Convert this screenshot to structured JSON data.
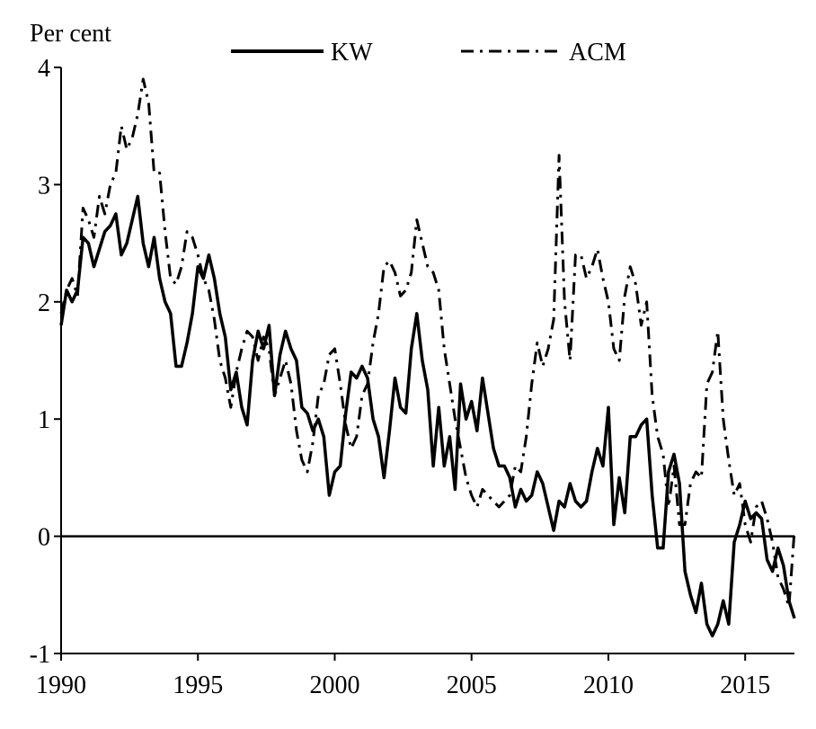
{
  "chart_data": {
    "type": "line",
    "title": "",
    "xlabel": "",
    "ylabel": "Per cent",
    "xlim": [
      1990,
      2016.8
    ],
    "ylim": [
      -1,
      4
    ],
    "x_ticks": [
      1990,
      1995,
      2000,
      2005,
      2010,
      2015
    ],
    "x_tick_labels": [
      "1990",
      "1995",
      "2000",
      "2005",
      "2010",
      "2015"
    ],
    "y_ticks": [
      -1,
      0,
      1,
      2,
      3,
      4
    ],
    "y_tick_labels": [
      "-1",
      "0",
      "1",
      "2",
      "3",
      "4"
    ],
    "grid": false,
    "legend_position": "top",
    "zero_line": true,
    "series": [
      {
        "name": "KW",
        "style": "solid",
        "color": "#000000",
        "points": [
          [
            1990.0,
            1.8
          ],
          [
            1990.2,
            2.1
          ],
          [
            1990.4,
            2.0
          ],
          [
            1990.6,
            2.1
          ],
          [
            1990.8,
            2.55
          ],
          [
            1991.0,
            2.5
          ],
          [
            1991.2,
            2.3
          ],
          [
            1991.4,
            2.45
          ],
          [
            1991.6,
            2.6
          ],
          [
            1991.8,
            2.65
          ],
          [
            1992.0,
            2.75
          ],
          [
            1992.2,
            2.4
          ],
          [
            1992.4,
            2.5
          ],
          [
            1992.6,
            2.7
          ],
          [
            1992.8,
            2.9
          ],
          [
            1993.0,
            2.5
          ],
          [
            1993.2,
            2.3
          ],
          [
            1993.4,
            2.55
          ],
          [
            1993.6,
            2.2
          ],
          [
            1993.8,
            2.0
          ],
          [
            1994.0,
            1.9
          ],
          [
            1994.2,
            1.45
          ],
          [
            1994.4,
            1.45
          ],
          [
            1994.6,
            1.65
          ],
          [
            1994.8,
            1.9
          ],
          [
            1995.0,
            2.3
          ],
          [
            1995.2,
            2.2
          ],
          [
            1995.4,
            2.4
          ],
          [
            1995.6,
            2.2
          ],
          [
            1995.8,
            1.9
          ],
          [
            1996.0,
            1.7
          ],
          [
            1996.2,
            1.25
          ],
          [
            1996.4,
            1.4
          ],
          [
            1996.6,
            1.1
          ],
          [
            1996.8,
            0.95
          ],
          [
            1997.0,
            1.5
          ],
          [
            1997.2,
            1.75
          ],
          [
            1997.4,
            1.6
          ],
          [
            1997.6,
            1.8
          ],
          [
            1997.8,
            1.2
          ],
          [
            1998.0,
            1.55
          ],
          [
            1998.2,
            1.75
          ],
          [
            1998.4,
            1.6
          ],
          [
            1998.6,
            1.5
          ],
          [
            1998.8,
            1.1
          ],
          [
            1999.0,
            1.05
          ],
          [
            1999.2,
            0.9
          ],
          [
            1999.4,
            1.0
          ],
          [
            1999.6,
            0.85
          ],
          [
            1999.8,
            0.35
          ],
          [
            2000.0,
            0.55
          ],
          [
            2000.2,
            0.6
          ],
          [
            2000.4,
            1.05
          ],
          [
            2000.6,
            1.4
          ],
          [
            2000.8,
            1.35
          ],
          [
            2001.0,
            1.45
          ],
          [
            2001.2,
            1.35
          ],
          [
            2001.4,
            1.0
          ],
          [
            2001.6,
            0.85
          ],
          [
            2001.8,
            0.5
          ],
          [
            2002.0,
            0.9
          ],
          [
            2002.2,
            1.35
          ],
          [
            2002.4,
            1.1
          ],
          [
            2002.6,
            1.05
          ],
          [
            2002.8,
            1.6
          ],
          [
            2003.0,
            1.9
          ],
          [
            2003.2,
            1.5
          ],
          [
            2003.4,
            1.25
          ],
          [
            2003.6,
            0.6
          ],
          [
            2003.8,
            1.1
          ],
          [
            2004.0,
            0.6
          ],
          [
            2004.2,
            0.85
          ],
          [
            2004.4,
            0.4
          ],
          [
            2004.6,
            1.3
          ],
          [
            2004.8,
            1.0
          ],
          [
            2005.0,
            1.15
          ],
          [
            2005.2,
            0.9
          ],
          [
            2005.4,
            1.35
          ],
          [
            2005.6,
            1.05
          ],
          [
            2005.8,
            0.75
          ],
          [
            2006.0,
            0.6
          ],
          [
            2006.2,
            0.6
          ],
          [
            2006.4,
            0.5
          ],
          [
            2006.6,
            0.25
          ],
          [
            2006.8,
            0.4
          ],
          [
            2007.0,
            0.3
          ],
          [
            2007.2,
            0.35
          ],
          [
            2007.4,
            0.55
          ],
          [
            2007.6,
            0.45
          ],
          [
            2007.8,
            0.25
          ],
          [
            2008.0,
            0.05
          ],
          [
            2008.2,
            0.3
          ],
          [
            2008.4,
            0.25
          ],
          [
            2008.6,
            0.45
          ],
          [
            2008.8,
            0.3
          ],
          [
            2009.0,
            0.25
          ],
          [
            2009.2,
            0.3
          ],
          [
            2009.4,
            0.55
          ],
          [
            2009.6,
            0.75
          ],
          [
            2009.8,
            0.6
          ],
          [
            2010.0,
            1.1
          ],
          [
            2010.2,
            0.1
          ],
          [
            2010.4,
            0.5
          ],
          [
            2010.6,
            0.2
          ],
          [
            2010.8,
            0.85
          ],
          [
            2011.0,
            0.85
          ],
          [
            2011.2,
            0.95
          ],
          [
            2011.4,
            1.0
          ],
          [
            2011.6,
            0.35
          ],
          [
            2011.8,
            -0.1
          ],
          [
            2012.0,
            -0.1
          ],
          [
            2012.2,
            0.55
          ],
          [
            2012.4,
            0.7
          ],
          [
            2012.6,
            0.45
          ],
          [
            2012.8,
            -0.3
          ],
          [
            2013.0,
            -0.5
          ],
          [
            2013.2,
            -0.65
          ],
          [
            2013.4,
            -0.4
          ],
          [
            2013.6,
            -0.75
          ],
          [
            2013.8,
            -0.85
          ],
          [
            2014.0,
            -0.75
          ],
          [
            2014.2,
            -0.55
          ],
          [
            2014.4,
            -0.75
          ],
          [
            2014.6,
            -0.05
          ],
          [
            2014.8,
            0.1
          ],
          [
            2015.0,
            0.3
          ],
          [
            2015.2,
            0.15
          ],
          [
            2015.4,
            0.2
          ],
          [
            2015.6,
            0.15
          ],
          [
            2015.8,
            -0.2
          ],
          [
            2016.0,
            -0.3
          ],
          [
            2016.2,
            -0.1
          ],
          [
            2016.4,
            -0.25
          ],
          [
            2016.6,
            -0.55
          ],
          [
            2016.8,
            -0.7
          ]
        ]
      },
      {
        "name": "ACM",
        "style": "dash-dot",
        "color": "#000000",
        "points": [
          [
            1990.0,
            1.9
          ],
          [
            1990.2,
            2.1
          ],
          [
            1990.4,
            2.2
          ],
          [
            1990.6,
            2.05
          ],
          [
            1990.8,
            2.8
          ],
          [
            1991.0,
            2.7
          ],
          [
            1991.2,
            2.55
          ],
          [
            1991.4,
            2.9
          ],
          [
            1991.6,
            2.75
          ],
          [
            1991.8,
            3.0
          ],
          [
            1992.0,
            3.1
          ],
          [
            1992.2,
            3.5
          ],
          [
            1992.4,
            3.3
          ],
          [
            1992.6,
            3.4
          ],
          [
            1992.8,
            3.6
          ],
          [
            1993.0,
            3.9
          ],
          [
            1993.2,
            3.7
          ],
          [
            1993.4,
            3.1
          ],
          [
            1993.6,
            3.1
          ],
          [
            1993.8,
            2.6
          ],
          [
            1994.0,
            2.2
          ],
          [
            1994.2,
            2.15
          ],
          [
            1994.4,
            2.3
          ],
          [
            1994.6,
            2.6
          ],
          [
            1994.8,
            2.55
          ],
          [
            1995.0,
            2.4
          ],
          [
            1995.2,
            2.2
          ],
          [
            1995.4,
            2.1
          ],
          [
            1995.6,
            1.85
          ],
          [
            1995.8,
            1.5
          ],
          [
            1996.0,
            1.35
          ],
          [
            1996.2,
            1.1
          ],
          [
            1996.4,
            1.4
          ],
          [
            1996.6,
            1.6
          ],
          [
            1996.8,
            1.75
          ],
          [
            1997.0,
            1.7
          ],
          [
            1997.2,
            1.5
          ],
          [
            1997.4,
            1.7
          ],
          [
            1997.6,
            1.6
          ],
          [
            1997.8,
            1.2
          ],
          [
            1998.0,
            1.35
          ],
          [
            1998.2,
            1.5
          ],
          [
            1998.4,
            1.3
          ],
          [
            1998.6,
            0.9
          ],
          [
            1998.8,
            0.65
          ],
          [
            1999.0,
            0.55
          ],
          [
            1999.2,
            0.8
          ],
          [
            1999.4,
            1.2
          ],
          [
            1999.6,
            1.3
          ],
          [
            1999.8,
            1.55
          ],
          [
            2000.0,
            1.6
          ],
          [
            2000.2,
            1.3
          ],
          [
            2000.4,
            0.95
          ],
          [
            2000.6,
            0.75
          ],
          [
            2000.8,
            0.85
          ],
          [
            2001.0,
            1.2
          ],
          [
            2001.2,
            1.3
          ],
          [
            2001.4,
            1.65
          ],
          [
            2001.6,
            1.9
          ],
          [
            2001.8,
            2.3
          ],
          [
            2002.0,
            2.35
          ],
          [
            2002.2,
            2.25
          ],
          [
            2002.4,
            2.05
          ],
          [
            2002.6,
            2.1
          ],
          [
            2002.8,
            2.25
          ],
          [
            2003.0,
            2.7
          ],
          [
            2003.2,
            2.5
          ],
          [
            2003.4,
            2.3
          ],
          [
            2003.6,
            2.25
          ],
          [
            2003.8,
            2.1
          ],
          [
            2004.0,
            1.6
          ],
          [
            2004.2,
            1.3
          ],
          [
            2004.4,
            1.0
          ],
          [
            2004.6,
            0.75
          ],
          [
            2004.8,
            0.5
          ],
          [
            2005.0,
            0.35
          ],
          [
            2005.2,
            0.25
          ],
          [
            2005.4,
            0.4
          ],
          [
            2005.6,
            0.35
          ],
          [
            2005.8,
            0.3
          ],
          [
            2006.0,
            0.25
          ],
          [
            2006.2,
            0.3
          ],
          [
            2006.4,
            0.35
          ],
          [
            2006.6,
            0.6
          ],
          [
            2006.8,
            0.55
          ],
          [
            2007.0,
            0.85
          ],
          [
            2007.2,
            1.3
          ],
          [
            2007.4,
            1.65
          ],
          [
            2007.6,
            1.45
          ],
          [
            2007.8,
            1.6
          ],
          [
            2008.0,
            1.85
          ],
          [
            2008.2,
            3.25
          ],
          [
            2008.4,
            2.0
          ],
          [
            2008.6,
            1.5
          ],
          [
            2008.8,
            2.4
          ],
          [
            2009.0,
            2.4
          ],
          [
            2009.2,
            2.2
          ],
          [
            2009.4,
            2.3
          ],
          [
            2009.6,
            2.45
          ],
          [
            2009.8,
            2.2
          ],
          [
            2010.0,
            2.0
          ],
          [
            2010.2,
            1.6
          ],
          [
            2010.4,
            1.5
          ],
          [
            2010.6,
            2.05
          ],
          [
            2010.8,
            2.3
          ],
          [
            2011.0,
            2.15
          ],
          [
            2011.2,
            1.8
          ],
          [
            2011.4,
            2.0
          ],
          [
            2011.6,
            1.2
          ],
          [
            2011.8,
            0.85
          ],
          [
            2012.0,
            0.7
          ],
          [
            2012.2,
            0.25
          ],
          [
            2012.4,
            0.6
          ],
          [
            2012.6,
            0.1
          ],
          [
            2012.8,
            0.1
          ],
          [
            2013.0,
            0.45
          ],
          [
            2013.2,
            0.55
          ],
          [
            2013.4,
            0.5
          ],
          [
            2013.6,
            1.3
          ],
          [
            2013.8,
            1.4
          ],
          [
            2014.0,
            1.75
          ],
          [
            2014.2,
            1.0
          ],
          [
            2014.4,
            0.65
          ],
          [
            2014.6,
            0.35
          ],
          [
            2014.8,
            0.45
          ],
          [
            2015.0,
            0.1
          ],
          [
            2015.2,
            -0.05
          ],
          [
            2015.4,
            0.25
          ],
          [
            2015.6,
            0.3
          ],
          [
            2015.8,
            0.15
          ],
          [
            2016.0,
            -0.05
          ],
          [
            2016.2,
            -0.35
          ],
          [
            2016.4,
            -0.45
          ],
          [
            2016.6,
            -0.6
          ],
          [
            2016.8,
            0.05
          ]
        ]
      }
    ]
  }
}
